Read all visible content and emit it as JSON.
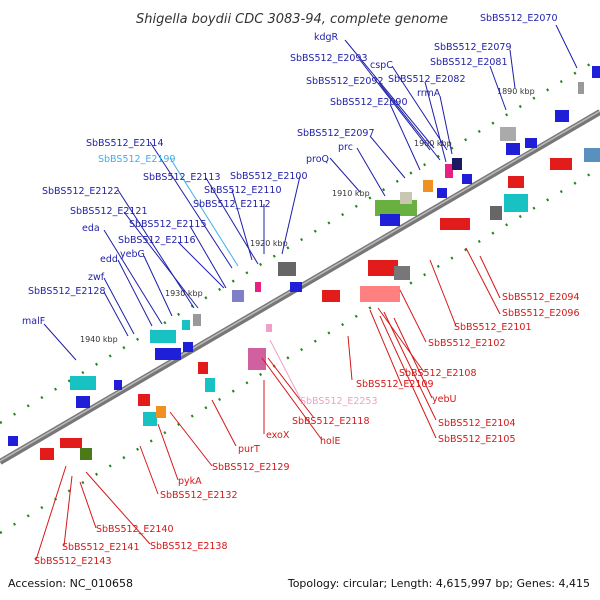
{
  "title": "Shigella boydii CDC 3083-94, complete genome",
  "footer": {
    "accession": "Accession: NC_010658",
    "summary": "Topology: circular; Length: 4,615,997 bp; Genes: 4,415"
  },
  "colors": {
    "forward": "#1f1fd8",
    "reverse": "#e21b1b",
    "axis": "#777777",
    "tick": "#1a8a1a"
  },
  "kbp_labels": [
    "1890 kbp",
    "1900 kbp",
    "1910 kbp",
    "1920 kbp",
    "1930 kbp",
    "1940 kbp"
  ],
  "top_labels": [
    "SbBS512_E2070",
    "SbBS512_E2079",
    "SbBS512_E2081",
    "kdgR",
    "SbBS512_E2093",
    "cspC",
    "SbBS512_E2092",
    "SbBS512_E2082",
    "rrmA",
    "SbBS512_E2090",
    "SbBS512_E2097",
    "prc",
    "proQ",
    "SbBS512_E2114",
    "SbBS512_E2199",
    "SbBS512_E2113",
    "SbBS512_E2100",
    "SbBS512_E2110",
    "SbBS512_E2122",
    "SbBS512_E2112",
    "SbBS512_E2121",
    "SbBS512_E2115",
    "eda",
    "SbBS512_E2116",
    "edd",
    "yebG",
    "zwf",
    "SbBS512_E2128",
    "malF"
  ],
  "bottom_labels": [
    "SbBS512_E2094",
    "SbBS512_E2096",
    "SbBS512_E2101",
    "SbBS512_E2102",
    "SbBS512_E2108",
    "SbBS512_E2109",
    "yebU",
    "SbBS512_E2253",
    "SbBS512_E2118",
    "exoX",
    "holE",
    "SbBS512_E2104",
    "SbBS512_E2105",
    "purT",
    "SbBS512_E2129",
    "pykA",
    "SbBS512_E2132",
    "SbBS512_E2140",
    "SbBS512_E2141",
    "SbBS512_E2138",
    "SbBS512_E2143"
  ]
}
